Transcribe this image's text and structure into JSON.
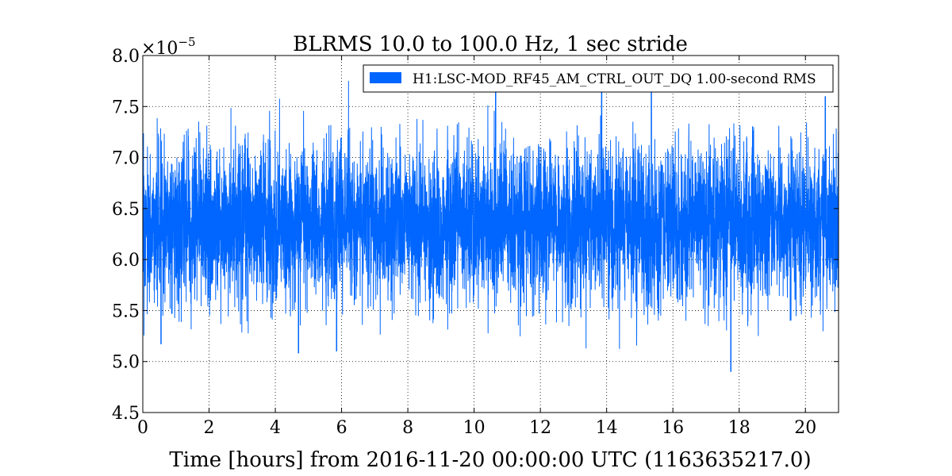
{
  "chart_data": {
    "type": "line",
    "title": "BLRMS 10.0 to 100.0 Hz, 1 sec stride",
    "xlabel": "Time [hours] from 2016-11-20 00:00:00 UTC (1163635217.0)",
    "ylabel": "",
    "xlim": [
      0,
      21
    ],
    "ylim": [
      4.5e-05,
      8e-05
    ],
    "x_ticks": [
      0,
      2,
      4,
      6,
      8,
      10,
      12,
      14,
      16,
      18,
      20
    ],
    "x_tick_labels": [
      "0",
      "2",
      "4",
      "6",
      "8",
      "10",
      "12",
      "14",
      "16",
      "18",
      "20"
    ],
    "y_ticks": [
      4.5,
      5.0,
      5.5,
      6.0,
      6.5,
      7.0,
      7.5,
      8.0
    ],
    "y_tick_labels": [
      "4.5",
      "5.0",
      "5.5",
      "6.0",
      "6.5",
      "7.0",
      "7.5",
      "8.0"
    ],
    "y_multiplier": "×10",
    "y_multiplier_exponent": "−5",
    "grid": true,
    "legend_position": "top-right",
    "series": [
      {
        "name": "H1:LSC-MOD_RF45_AM_CTRL_OUT_DQ 1.00-second RMS",
        "color": "#0066ff",
        "typical_band": [
          5.7e-05,
          7e-05
        ],
        "notable_peaks": [
          {
            "x": 10.65,
            "y": 7.67e-05
          },
          {
            "x": 13.85,
            "y": 7.65e-05
          },
          {
            "x": 15.35,
            "y": 7.74e-05
          },
          {
            "x": 20.6,
            "y": 7.6e-05
          }
        ],
        "notable_dips": [
          {
            "x": 0.55,
            "y": 5.17e-05
          },
          {
            "x": 4.7,
            "y": 5.08e-05
          },
          {
            "x": 5.85,
            "y": 5.1e-05
          },
          {
            "x": 17.75,
            "y": 4.9e-05
          }
        ]
      }
    ]
  }
}
